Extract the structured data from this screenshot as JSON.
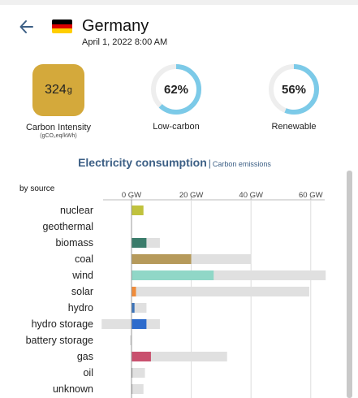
{
  "header": {
    "country": "Germany",
    "datetime": "April 1, 2022 8:00 AM",
    "flag_colors": [
      "#000000",
      "#dd0000",
      "#ffce00"
    ]
  },
  "metrics": {
    "carbon_intensity": {
      "value": "324",
      "unit": "g",
      "label": "Carbon Intensity",
      "sublabel": "(gCO₂eq/kWh)",
      "color": "#d4a93b"
    },
    "low_carbon": {
      "value": "62%",
      "label": "Low-carbon",
      "fraction": 0.62
    },
    "renewable": {
      "value": "56%",
      "label": "Renewable",
      "fraction": 0.56
    },
    "ring_color": "#7ccae8",
    "ring_track_color": "#eeeeee"
  },
  "section": {
    "title": "Electricity consumption",
    "separator": "|",
    "alt_link": "Carbon emissions"
  },
  "chart_data": {
    "type": "bar",
    "orientation": "horizontal",
    "by_label": "by source",
    "xticks": [
      "0 GW",
      "20 GW",
      "40 GW",
      "60 GW"
    ],
    "xlim": [
      -10,
      65
    ],
    "categories": [
      "nuclear",
      "geothermal",
      "biomass",
      "coal",
      "wind",
      "solar",
      "hydro",
      "hydro storage",
      "battery storage",
      "gas",
      "oil",
      "unknown"
    ],
    "series": [
      {
        "values": [
          4,
          0,
          5,
          20,
          27.5,
          1.5,
          1,
          5,
          0,
          6.5,
          0.3,
          0.3
        ],
        "colors": [
          "#c0c23d",
          "#d9a95b",
          "#3b7c6b",
          "#b69a5b",
          "#90d7c7",
          "#f08c3a",
          "#3b73b9",
          "#2d6bcc",
          "#8a7fc0",
          "#c9506e",
          "#8e8e8e",
          "#ababab"
        ]
      },
      {
        "values": [
          0,
          0,
          9.5,
          40,
          65,
          59.5,
          5,
          9.5,
          0,
          32,
          4.5,
          4
        ],
        "color": "#e0e0e0"
      }
    ],
    "negative_values": [
      0,
      0,
      0,
      0,
      0,
      0,
      0,
      -10,
      -0.5,
      0,
      0,
      0
    ],
    "gridlines": true
  }
}
